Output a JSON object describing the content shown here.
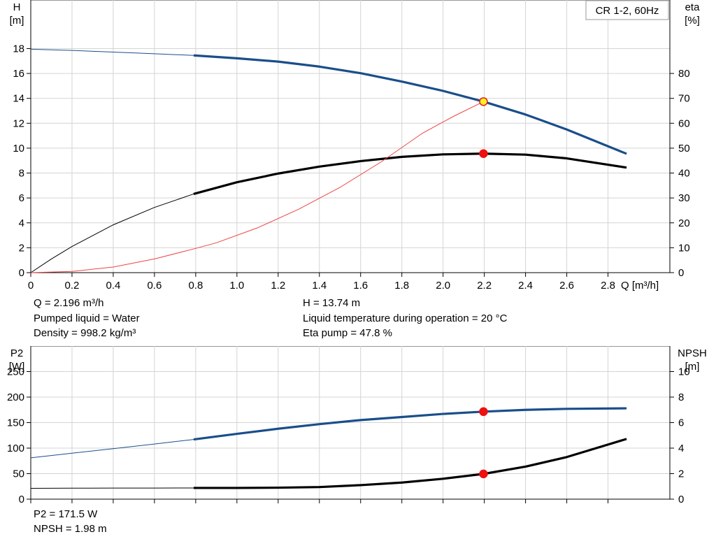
{
  "chart_data": [
    {
      "type": "line",
      "title": "CR 1-2, 60Hz",
      "x_axis": {
        "label": "Q [m³/h]",
        "range": [
          0,
          3.1
        ],
        "ticks": [
          0,
          0.2,
          0.4,
          0.6,
          0.8,
          1.0,
          1.2,
          1.4,
          1.6,
          1.8,
          2.0,
          2.2,
          2.4,
          2.6,
          2.8
        ],
        "tick_labels": [
          "0",
          "0.2",
          "0.4",
          "0.6",
          "0.8",
          "1.0",
          "1.2",
          "1.4",
          "1.6",
          "1.8",
          "2.0",
          "2.2",
          "2.4",
          "2.6",
          "2.8"
        ]
      },
      "y_left": {
        "label_line1": "H",
        "label_line2": "[m]",
        "range": [
          0,
          21.9
        ],
        "ticks": [
          0,
          2,
          4,
          6,
          8,
          10,
          12,
          14,
          16,
          18
        ],
        "tick_labels": [
          "0",
          "2",
          "4",
          "6",
          "8",
          "10",
          "12",
          "14",
          "16",
          "18"
        ]
      },
      "y_right": {
        "label_line1": "eta",
        "label_line2": "[%]",
        "range": [
          0,
          109.5
        ],
        "ticks": [
          0,
          10,
          20,
          30,
          40,
          50,
          60,
          70,
          80
        ],
        "tick_labels": [
          "0",
          "10",
          "20",
          "30",
          "40",
          "50",
          "60",
          "70",
          "80"
        ]
      },
      "grid": true,
      "series": [
        {
          "color": "#1a4e8a",
          "axis": "left",
          "x": [
            0,
            0.2,
            0.4,
            0.6,
            0.79,
            1.0,
            1.2,
            1.4,
            1.6,
            1.8,
            2.0,
            2.196,
            2.4,
            2.6,
            2.89
          ],
          "y": [
            17.95,
            17.85,
            17.72,
            17.58,
            17.45,
            17.22,
            16.95,
            16.55,
            16.02,
            15.35,
            14.6,
            13.74,
            12.7,
            11.5,
            9.55
          ]
        },
        {
          "color": "#000000",
          "axis": "right",
          "x": [
            0,
            0.1,
            0.2,
            0.4,
            0.6,
            0.79,
            1.0,
            1.2,
            1.4,
            1.6,
            1.8,
            2.0,
            2.196,
            2.4,
            2.6,
            2.89
          ],
          "y": [
            0,
            5.5,
            10.5,
            19.2,
            26.2,
            31.6,
            36.3,
            39.8,
            42.6,
            44.8,
            46.5,
            47.5,
            47.8,
            47.4,
            45.9,
            42.2
          ]
        },
        {
          "color": "#ee4444",
          "axis": "left",
          "x": [
            0,
            0.2,
            0.4,
            0.6,
            0.8,
            0.9,
            1.1,
            1.3,
            1.5,
            1.7,
            1.9,
            2.05,
            2.196
          ],
          "y": [
            0,
            0.1,
            0.45,
            1.1,
            1.95,
            2.4,
            3.6,
            5.1,
            6.85,
            8.9,
            11.2,
            12.55,
            13.74
          ]
        }
      ],
      "points": [
        {
          "x": 2.196,
          "y": 13.74,
          "axis": "left",
          "fill": "#ffee22",
          "stroke": "#dd2222"
        },
        {
          "x": 2.196,
          "y": 47.8,
          "axis": "right",
          "fill": "#ee1111",
          "stroke": "#ee1111"
        }
      ]
    },
    {
      "type": "line",
      "title": "",
      "x_axis": {
        "range": [
          0,
          3.1
        ]
      },
      "y_left": {
        "label_line1": "P2",
        "label_line2": "[W]",
        "range": [
          0,
          300
        ],
        "ticks": [
          0,
          50,
          100,
          150,
          200,
          250
        ],
        "tick_labels": [
          "0",
          "50",
          "100",
          "150",
          "200",
          "250"
        ]
      },
      "y_right": {
        "label_line1": "NPSH",
        "label_line2": "[m]",
        "range": [
          0,
          12
        ],
        "ticks": [
          0,
          2,
          4,
          6,
          8,
          10
        ],
        "tick_labels": [
          "0",
          "2",
          "4",
          "6",
          "8",
          "10"
        ]
      },
      "grid": true,
      "series": [
        {
          "color": "#1a4e8a",
          "axis": "left",
          "x": [
            0,
            0.2,
            0.4,
            0.6,
            0.79,
            1.0,
            1.2,
            1.4,
            1.6,
            1.8,
            2.0,
            2.196,
            2.4,
            2.6,
            2.89
          ],
          "y": [
            81,
            90,
            99,
            108,
            117,
            128,
            138,
            147,
            155,
            161,
            167,
            171.5,
            175,
            177,
            178
          ]
        },
        {
          "color": "#000000",
          "axis": "right",
          "x": [
            0,
            0.2,
            0.4,
            0.6,
            0.79,
            1.0,
            1.2,
            1.4,
            1.6,
            1.8,
            2.0,
            2.196,
            2.4,
            2.6,
            2.89
          ],
          "y": [
            0.85,
            0.86,
            0.87,
            0.87,
            0.88,
            0.88,
            0.9,
            0.95,
            1.1,
            1.3,
            1.6,
            1.98,
            2.55,
            3.3,
            4.72
          ]
        }
      ],
      "points": [
        {
          "x": 2.196,
          "y": 171.5,
          "axis": "left",
          "fill": "#ee1111",
          "stroke": "#ee1111"
        },
        {
          "x": 2.196,
          "y": 1.98,
          "axis": "right",
          "fill": "#ee1111",
          "stroke": "#ee1111"
        }
      ]
    }
  ],
  "info_top": {
    "q": "Q = 2.196 m³/h",
    "liquid": "Pumped liquid = Water",
    "density": "Density = 998.2 kg/m³",
    "h": "H = 13.74 m",
    "temperature": "Liquid temperature during operation = 20 °C",
    "eta": "Eta pump = 47.8 %"
  },
  "info_bottom": {
    "p2": "P2 = 171.5 W",
    "npsh": "NPSH = 1.98 m"
  }
}
